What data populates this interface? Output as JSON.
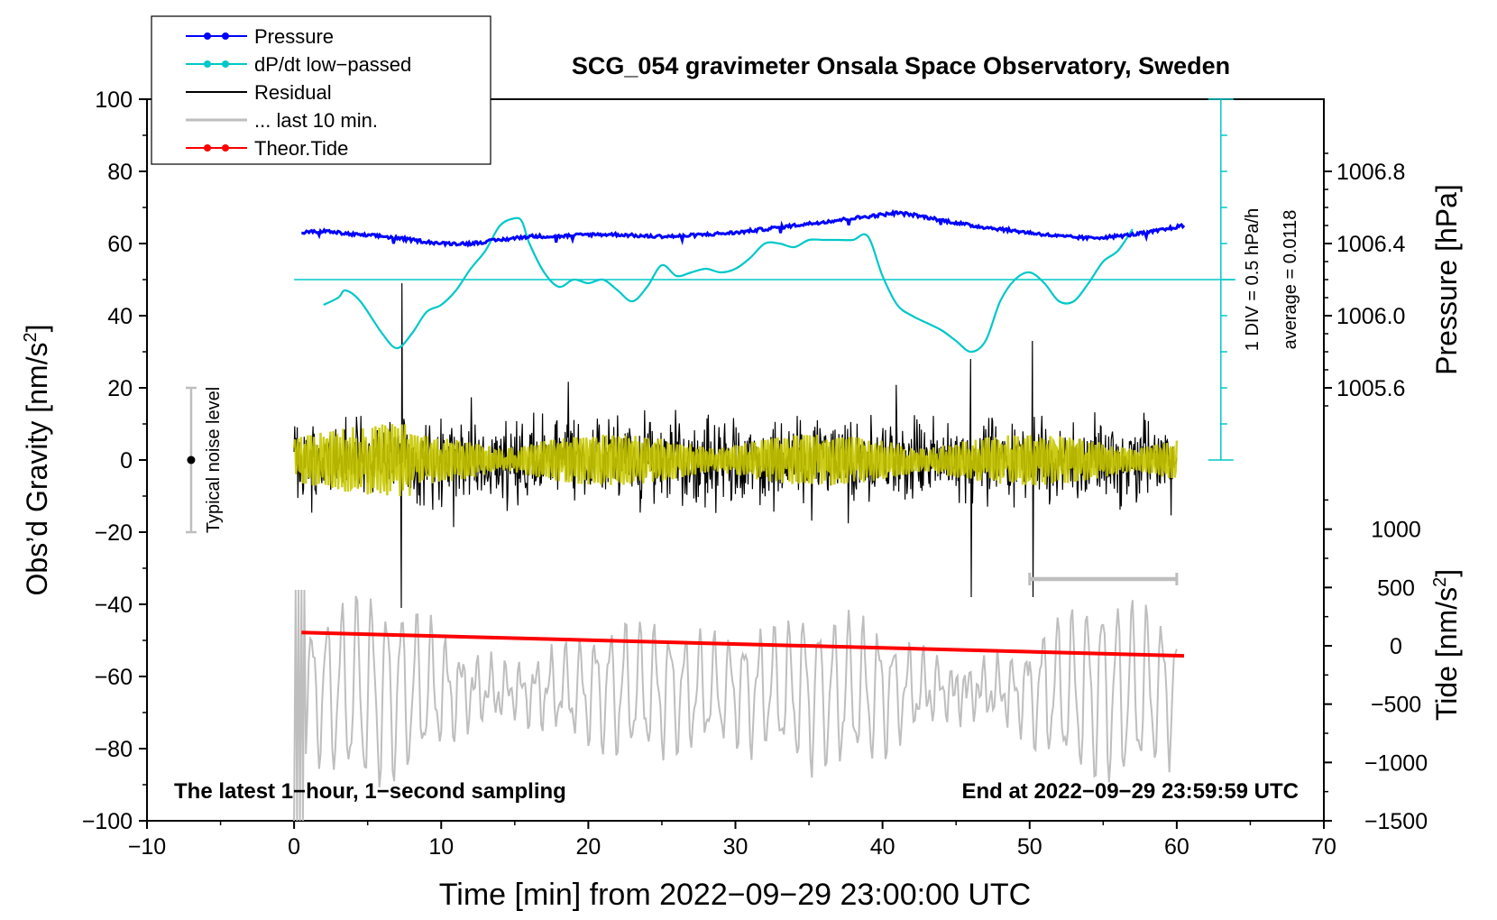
{
  "chart_data": {
    "type": "line",
    "title": "SCG_054 gravimeter Onsala Space Observatory, Sweden",
    "xlabel": "Time [min] from 2022−09−29 23:00:00 UTC",
    "ylabel_left": "Obs’d Gravity [nm/s",
    "ylabel_left_sup": "2",
    "ylabel_left_end": "]",
    "ylabel_right_pressure": "Pressure [hPa]",
    "ylabel_right_tide": "Tide [nm/s",
    "ylabel_right_tide_sup": "2",
    "ylabel_right_tide_end": "]",
    "xlim": [
      -10,
      70
    ],
    "ylim": [
      -100,
      100
    ],
    "x_ticks": [
      {
        "v": -10,
        "label": "−10"
      },
      {
        "v": 0,
        "label": "0"
      },
      {
        "v": 10,
        "label": "10"
      },
      {
        "v": 20,
        "label": "20"
      },
      {
        "v": 30,
        "label": "30"
      },
      {
        "v": 40,
        "label": "40"
      },
      {
        "v": 50,
        "label": "50"
      },
      {
        "v": 60,
        "label": "60"
      },
      {
        "v": 70,
        "label": "70"
      }
    ],
    "y_ticks": [
      {
        "v": 100,
        "label": "100"
      },
      {
        "v": 80,
        "label": "80"
      },
      {
        "v": 60,
        "label": "60"
      },
      {
        "v": 40,
        "label": "40"
      },
      {
        "v": 20,
        "label": "20"
      },
      {
        "v": 0,
        "label": "0"
      },
      {
        "v": -20,
        "label": "−20"
      },
      {
        "v": -40,
        "label": "−40"
      },
      {
        "v": -60,
        "label": "−60"
      },
      {
        "v": -80,
        "label": "−80"
      },
      {
        "v": -100,
        "label": "−100"
      }
    ],
    "pressure_axis": {
      "ylim": [
        1005.2,
        1007.2
      ],
      "ticks": [
        {
          "v": 1006.8,
          "label": "1006.8"
        },
        {
          "v": 1006.4,
          "label": "1006.4"
        },
        {
          "v": 1006.0,
          "label": "1006.0"
        },
        {
          "v": 1005.6,
          "label": "1005.6"
        }
      ]
    },
    "tide_axis": {
      "ylim": [
        -1500,
        1500
      ],
      "ticks": [
        {
          "v": 1000,
          "label": "1000"
        },
        {
          "v": 500,
          "label": "500"
        },
        {
          "v": 0,
          "label": "0"
        },
        {
          "v": -500,
          "label": "−500"
        },
        {
          "v": -1000,
          "label": "−1000"
        },
        {
          "v": -1500,
          "label": "−1500"
        }
      ]
    },
    "legend": [
      {
        "label": "Pressure",
        "color": "#0000ff",
        "marker": true
      },
      {
        "label": "dP/dt low−passed",
        "color": "#00c8c8",
        "marker": true
      },
      {
        "label": "Residual",
        "color": "#000000",
        "marker": false
      },
      {
        "label": "... last 10 min.",
        "color": "#bebebe",
        "marker": false
      },
      {
        "label": "Theor.Tide",
        "color": "#ff0000",
        "marker": true
      }
    ],
    "series": [
      {
        "name": "Pressure",
        "color": "#0000ff",
        "units": "hPa",
        "x": [
          0.5,
          2,
          4,
          6,
          8,
          10,
          12,
          14,
          16,
          18,
          20,
          22,
          24,
          26,
          28,
          30,
          32,
          34,
          36,
          38,
          40,
          41,
          42,
          44,
          46,
          48,
          50,
          52,
          54,
          56,
          58,
          60.5
        ],
        "values": [
          1006.46,
          1006.47,
          1006.45,
          1006.44,
          1006.42,
          1006.4,
          1006.4,
          1006.42,
          1006.44,
          1006.44,
          1006.45,
          1006.45,
          1006.44,
          1006.44,
          1006.45,
          1006.46,
          1006.48,
          1006.5,
          1006.52,
          1006.54,
          1006.56,
          1006.57,
          1006.56,
          1006.53,
          1006.5,
          1006.48,
          1006.46,
          1006.44,
          1006.43,
          1006.44,
          1006.46,
          1006.5
        ]
      },
      {
        "name": "dP/dt low−passed",
        "color": "#00c8c8",
        "units": "nm/s2 scale, 1 DIV = 0.5 hPa/h",
        "x": [
          2,
          3,
          3.5,
          4.5,
          6,
          7,
          8,
          9,
          10,
          11,
          12,
          13,
          14,
          15,
          15.5,
          16,
          17,
          18,
          19,
          20,
          21,
          22,
          23,
          24,
          25,
          26,
          27,
          28,
          29,
          30,
          31,
          32,
          33,
          34,
          35,
          36,
          37,
          38,
          39,
          40,
          41,
          42,
          43,
          44,
          45,
          46,
          47,
          48,
          49,
          50,
          51,
          52,
          53,
          54,
          55,
          56,
          57
        ],
        "values": [
          43,
          45,
          47,
          44,
          35,
          31,
          35,
          41,
          43,
          47,
          53,
          58,
          65,
          67,
          66,
          60,
          52,
          48,
          50,
          49,
          50,
          47,
          44,
          48,
          54,
          51,
          52,
          53,
          52,
          53,
          56,
          60,
          60,
          59,
          61,
          61,
          61,
          61,
          62,
          51,
          43,
          40,
          38,
          36,
          33,
          30,
          33,
          44,
          50,
          52,
          49,
          44,
          44,
          49,
          55,
          58,
          64
        ]
      },
      {
        "name": "Residual",
        "color": "#000000",
        "x_range": [
          0,
          60
        ],
        "envelope": [
          -20,
          20
        ],
        "spikes": [
          {
            "x": 7.3,
            "max": 49,
            "min": -41
          },
          {
            "x": 46,
            "max": 28,
            "min": -38
          },
          {
            "x": 50.2,
            "max": 33,
            "min": -38
          }
        ]
      },
      {
        "name": "Residual (smoothed)",
        "color": "#c8c800",
        "x_range": [
          0,
          60
        ],
        "envelope": [
          -8,
          8
        ]
      },
      {
        "name": "... last 10 min.",
        "color": "#bebebe",
        "units": "stretched over 0–60 min, nm/s2",
        "x_range": [
          0,
          60
        ],
        "envelope": [
          -100,
          -30
        ]
      },
      {
        "name": "Theor.Tide",
        "color": "#ff0000",
        "units": "nm/s2 (tide axis)",
        "x": [
          0.5,
          60.5
        ],
        "values": [
          114,
          -86
        ]
      }
    ],
    "dpdt_reference_line": 50,
    "last_10_min_bracket": {
      "x": [
        50,
        60
      ],
      "y": -33
    },
    "noise_bar": {
      "x": -7,
      "range": [
        -20,
        20
      ],
      "center": 0,
      "label": "Typical noise level"
    },
    "div_scale": {
      "x": 63,
      "range": [
        0,
        100
      ],
      "label_div": "1 DIV = 0.5 hPa/h",
      "label_avg": "average = 0.0118"
    },
    "annotations": {
      "bottom_left": "The latest 1−hour, 1−second sampling",
      "bottom_right": "End at 2022−09−29 23:59:59 UTC"
    }
  }
}
